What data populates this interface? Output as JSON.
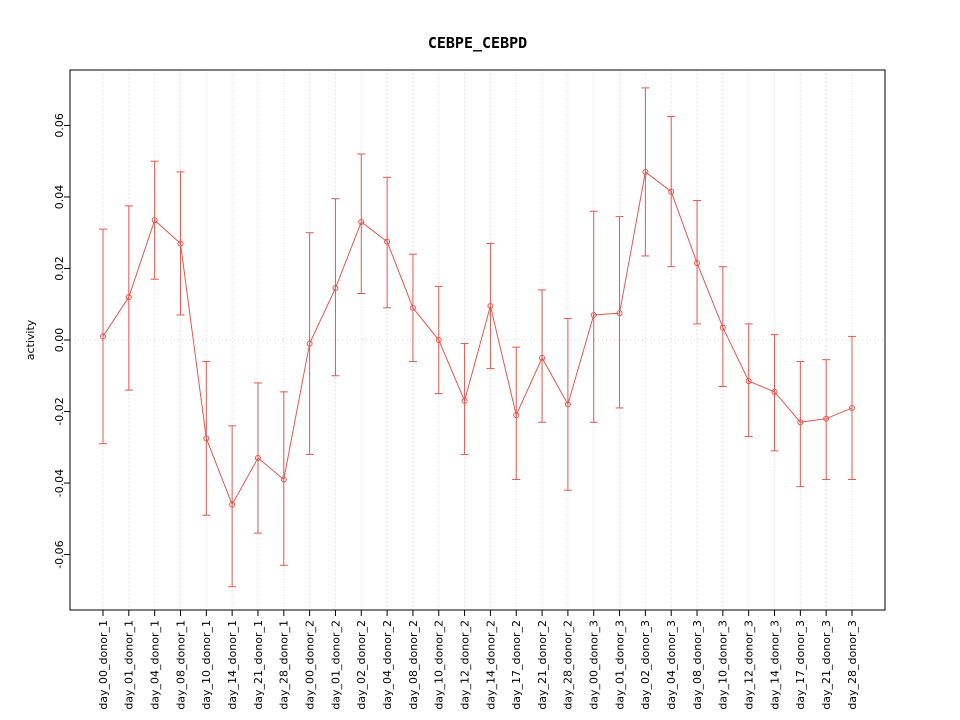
{
  "chart_data": {
    "type": "line",
    "title": "CEBPE_CEBPD",
    "ylabel": "activity",
    "xlabel": "",
    "legend": "none",
    "grid": "dotted vertical gridline at each category; dotted horizontal line at y=0",
    "series_color": "#e4574e",
    "grid_color": "#d4d4d4",
    "zero_line_color": "#d4d4d4",
    "box_color": "#000000",
    "point_style": "open-circle",
    "ylim": [
      -0.0755,
      0.0755
    ],
    "yticks": [
      -0.06,
      -0.04,
      -0.02,
      0,
      0.02,
      0.04,
      0.06
    ],
    "categories": [
      "day_00_donor_1",
      "day_01_donor_1",
      "day_04_donor_1",
      "day_08_donor_1",
      "day_10_donor_1",
      "day_14_donor_1",
      "day_21_donor_1",
      "day_28_donor_1",
      "day_00_donor_2",
      "day_01_donor_2",
      "day_02_donor_2",
      "day_04_donor_2",
      "day_08_donor_2",
      "day_10_donor_2",
      "day_12_donor_2",
      "day_14_donor_2",
      "day_17_donor_2",
      "day_21_donor_2",
      "day_28_donor_2",
      "day_00_donor_3",
      "day_01_donor_3",
      "day_02_donor_3",
      "day_04_donor_3",
      "day_08_donor_3",
      "day_10_donor_3",
      "day_12_donor_3",
      "day_14_donor_3",
      "day_17_donor_3",
      "day_21_donor_3",
      "day_28_donor_3"
    ],
    "values": [
      0.001,
      0.012,
      0.0335,
      0.027,
      -0.0275,
      -0.046,
      -0.033,
      -0.039,
      -0.001,
      0.0145,
      0.033,
      0.0275,
      0.009,
      0.0,
      -0.017,
      0.0095,
      -0.021,
      -0.005,
      -0.018,
      0.007,
      0.0075,
      0.047,
      0.0415,
      0.0215,
      0.0035,
      -0.0115,
      -0.0145,
      -0.023,
      -0.022,
      -0.019
    ],
    "error_upper": [
      0.031,
      0.0375,
      0.05,
      0.047,
      -0.006,
      -0.024,
      -0.012,
      -0.0145,
      0.03,
      0.0395,
      0.052,
      0.0455,
      0.024,
      0.015,
      -0.001,
      0.027,
      -0.002,
      0.014,
      0.006,
      0.036,
      0.0345,
      0.0705,
      0.0625,
      0.039,
      0.0205,
      0.0045,
      0.0015,
      -0.006,
      -0.0055,
      0.001
    ],
    "error_lower": [
      -0.029,
      -0.014,
      0.017,
      0.007,
      -0.049,
      -0.069,
      -0.054,
      -0.063,
      -0.032,
      -0.01,
      0.013,
      0.009,
      -0.006,
      -0.015,
      -0.032,
      -0.008,
      -0.039,
      -0.023,
      -0.042,
      -0.023,
      -0.019,
      0.0235,
      0.0205,
      0.0045,
      -0.013,
      -0.027,
      -0.031,
      -0.041,
      -0.039,
      -0.039
    ]
  }
}
